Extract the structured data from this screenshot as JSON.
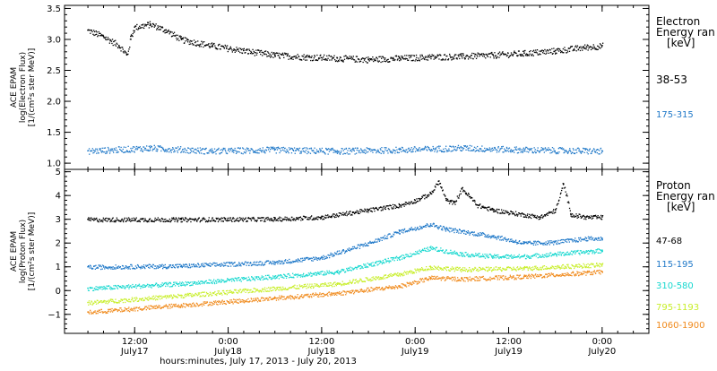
{
  "chart_data": [
    {
      "type": "scatter",
      "panel": "electron",
      "ylabel": [
        "ACE EPAM",
        "log(Electron Flux)",
        "[1/(cm²s ster MeV)]"
      ],
      "ylim": [
        0.9,
        3.55
      ],
      "yticks": [
        1.0,
        1.5,
        2.0,
        2.5,
        3.0,
        3.5
      ],
      "ytick_labels": [
        "1.0",
        "1.5",
        "2.0",
        "2.5",
        "3.0",
        "3.5"
      ],
      "legend": {
        "title": [
          "Electron",
          "Energy ran",
          "[keV]"
        ],
        "placement": "right"
      },
      "series": [
        {
          "name": "38-53",
          "color": "#000000",
          "x": [
            0,
            2,
            4,
            5,
            5.5,
            6,
            8,
            10,
            12,
            16,
            20,
            24,
            28,
            32,
            36,
            40,
            44,
            48,
            52,
            56,
            60,
            64,
            66
          ],
          "y": [
            3.15,
            3.05,
            2.9,
            2.75,
            3.05,
            3.2,
            3.25,
            3.15,
            3.0,
            2.9,
            2.82,
            2.75,
            2.72,
            2.7,
            2.68,
            2.7,
            2.72,
            2.73,
            2.75,
            2.78,
            2.82,
            2.88,
            2.9
          ]
        },
        {
          "name": "175-315",
          "color": "#1f78c8",
          "x": [
            0,
            8,
            16,
            24,
            32,
            40,
            48,
            56,
            66
          ],
          "y": [
            1.2,
            1.25,
            1.2,
            1.22,
            1.2,
            1.22,
            1.25,
            1.22,
            1.2
          ]
        }
      ]
    },
    {
      "type": "scatter",
      "panel": "proton",
      "ylabel": [
        "ACE EPAM",
        "log(Proton Flux)",
        "[1/(cm²s ster MeV)]"
      ],
      "ylim": [
        -1.8,
        5.1
      ],
      "yticks": [
        -1,
        0,
        1,
        2,
        3,
        4,
        5
      ],
      "ytick_labels": [
        "−1",
        "0",
        "1",
        "2",
        "3",
        "4",
        "5"
      ],
      "legend": {
        "title": [
          "Proton",
          "Energy ran",
          "[keV]"
        ],
        "placement": "right"
      },
      "series": [
        {
          "name": "47-68",
          "color": "#000000",
          "x": [
            0,
            12,
            24,
            30,
            34,
            36,
            40,
            42,
            44,
            45,
            46,
            47,
            48,
            50,
            52,
            56,
            58,
            60,
            61,
            62,
            64,
            66
          ],
          "y": [
            3.0,
            3.0,
            3.02,
            3.1,
            3.3,
            3.4,
            3.6,
            3.8,
            4.1,
            4.6,
            3.8,
            3.7,
            4.3,
            3.6,
            3.4,
            3.2,
            3.1,
            3.4,
            4.5,
            3.2,
            3.1,
            3.1
          ]
        },
        {
          "name": "115-195",
          "color": "#1f78c8",
          "x": [
            0,
            12,
            24,
            30,
            36,
            40,
            44,
            46,
            48,
            52,
            56,
            60,
            64,
            66
          ],
          "y": [
            1.0,
            1.05,
            1.2,
            1.4,
            2.0,
            2.5,
            2.8,
            2.6,
            2.5,
            2.3,
            2.0,
            2.05,
            2.2,
            2.2
          ]
        },
        {
          "name": "310-580",
          "color": "#17d8cf",
          "x": [
            0,
            12,
            24,
            32,
            40,
            44,
            48,
            52,
            56,
            60,
            66
          ],
          "y": [
            0.1,
            0.3,
            0.6,
            0.8,
            1.4,
            1.8,
            1.55,
            1.45,
            1.45,
            1.55,
            1.7
          ]
        },
        {
          "name": "795-1193",
          "color": "#c8ee2a",
          "x": [
            0,
            12,
            24,
            32,
            40,
            44,
            48,
            56,
            66
          ],
          "y": [
            -0.5,
            -0.2,
            0.1,
            0.3,
            0.7,
            1.0,
            0.9,
            0.95,
            1.1
          ]
        },
        {
          "name": "1060-1900",
          "color": "#f08a1c",
          "x": [
            0,
            12,
            24,
            32,
            40,
            44,
            48,
            56,
            66
          ],
          "y": [
            -0.9,
            -0.6,
            -0.3,
            -0.1,
            0.2,
            0.55,
            0.5,
            0.6,
            0.8
          ]
        }
      ]
    }
  ],
  "x_axis": {
    "xlim": [
      -3,
      72
    ],
    "ticks": [
      6,
      18,
      30,
      42,
      54,
      66
    ],
    "tick_labels": [
      "12:00",
      "0:00",
      "12:00",
      "0:00",
      "12:00",
      "0:00"
    ],
    "tick_sublabels": [
      "July17",
      "July18",
      "July18",
      "July19",
      "July19",
      "July20"
    ],
    "xlabel": "hours:minutes, July 17, 2013 - July 20, 2013"
  }
}
